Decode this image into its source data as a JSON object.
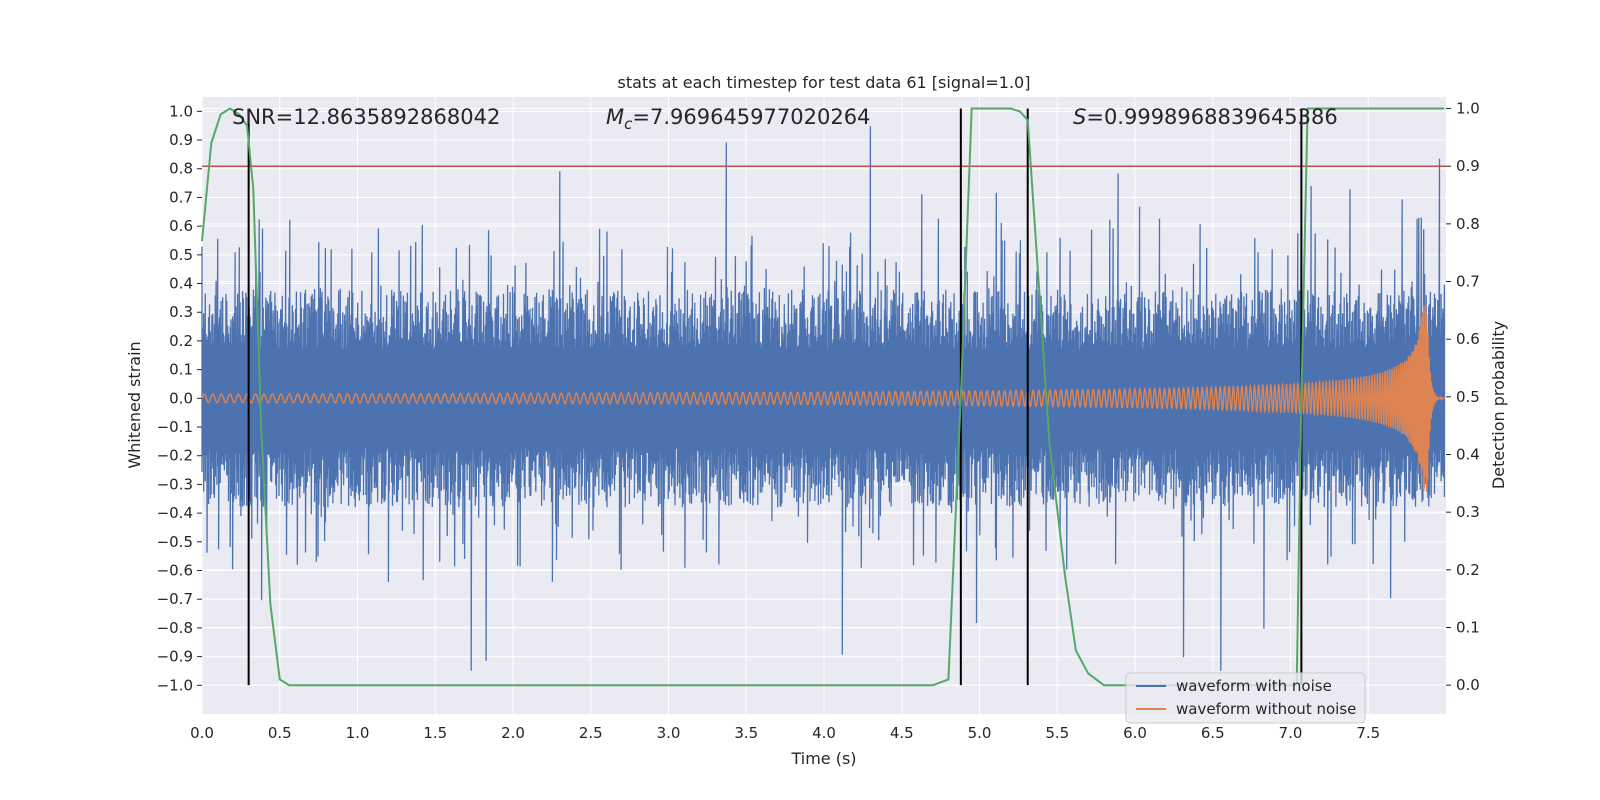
{
  "chart_data": {
    "type": "line",
    "title": "stats at each timestep for test data 61 [signal=1.0]",
    "xlabel": "Time (s)",
    "ylabel": "Whitened strain",
    "ylabel_right": "Detection probability",
    "xlim": [
      0.0,
      8.0
    ],
    "ylim": [
      -1.1,
      1.05
    ],
    "ylim_right": [
      -0.05,
      1.02
    ],
    "x_ticks": [
      "0.0",
      "0.5",
      "1.0",
      "1.5",
      "2.0",
      "2.5",
      "3.0",
      "3.5",
      "4.0",
      "4.5",
      "5.0",
      "5.5",
      "6.0",
      "6.5",
      "7.0",
      "7.5"
    ],
    "y_ticks": [
      "1.0",
      "0.9",
      "0.8",
      "0.7",
      "0.6",
      "0.5",
      "0.4",
      "0.3",
      "0.2",
      "0.1",
      "0.0",
      "−0.1",
      "−0.2",
      "−0.3",
      "−0.4",
      "−0.5",
      "−0.6",
      "−0.7",
      "−0.8",
      "−0.9",
      "−1.0"
    ],
    "y_right_ticks": [
      "1.0",
      "0.9",
      "0.8",
      "0.7",
      "0.6",
      "0.5",
      "0.4",
      "0.3",
      "0.2",
      "0.1",
      "0.0"
    ],
    "annotations": {
      "snr": "SNR=12.8635892868042",
      "mc_symbol": "M",
      "mc_sub": "c",
      "mc_value": "=7.969645977020264",
      "s_symbol": "S",
      "s_value": "=0.9998968839645386"
    },
    "threshold_right": 0.9,
    "detection_boundaries_s": [
      0.3,
      4.88,
      5.31,
      7.07
    ],
    "series": [
      {
        "name": "waveform with noise",
        "color": "#4c72b0",
        "kind": "noise",
        "band_abs": 0.38,
        "spike_max": 0.96,
        "spike_min": -1.0,
        "t_end": 7.99
      },
      {
        "name": "waveform without noise",
        "color": "#dd8452",
        "kind": "chirp",
        "amp_start": 0.015,
        "amp_peak": 0.33,
        "t_merger": 7.88,
        "f_start": 18,
        "t_end": 7.99
      },
      {
        "name": "Detection probability",
        "color": "#55a868",
        "axis": "right",
        "x": [
          0.0,
          0.06,
          0.12,
          0.18,
          0.24,
          0.29,
          0.33,
          0.38,
          0.44,
          0.5,
          0.56,
          0.65,
          1.0,
          2.0,
          3.0,
          4.0,
          4.5,
          4.7,
          4.8,
          4.88,
          4.95,
          5.0,
          5.1,
          5.2,
          5.26,
          5.31,
          5.36,
          5.45,
          5.55,
          5.62,
          5.7,
          5.8,
          6.0,
          6.5,
          7.0,
          7.04,
          7.07,
          7.11,
          7.2,
          7.5,
          7.99
        ],
        "y": [
          0.77,
          0.94,
          0.99,
          1.0,
          0.99,
          0.97,
          0.86,
          0.45,
          0.14,
          0.01,
          0.0,
          0.0,
          0.0,
          0.0,
          0.0,
          0.0,
          0.0,
          0.0,
          0.01,
          0.5,
          1.0,
          1.0,
          1.0,
          1.0,
          0.995,
          0.98,
          0.78,
          0.42,
          0.19,
          0.06,
          0.02,
          0.0,
          0.0,
          0.0,
          0.0,
          0.0,
          0.5,
          1.0,
          1.0,
          1.0,
          1.0
        ]
      }
    ],
    "legend": {
      "placement": "lower-right",
      "entries": [
        "waveform with noise",
        "waveform without noise"
      ]
    },
    "grid": true,
    "colors": {
      "background": "#eaeaf2",
      "grid": "#ffffff",
      "threshold": "#c44e52",
      "boundary": "#000000"
    }
  }
}
